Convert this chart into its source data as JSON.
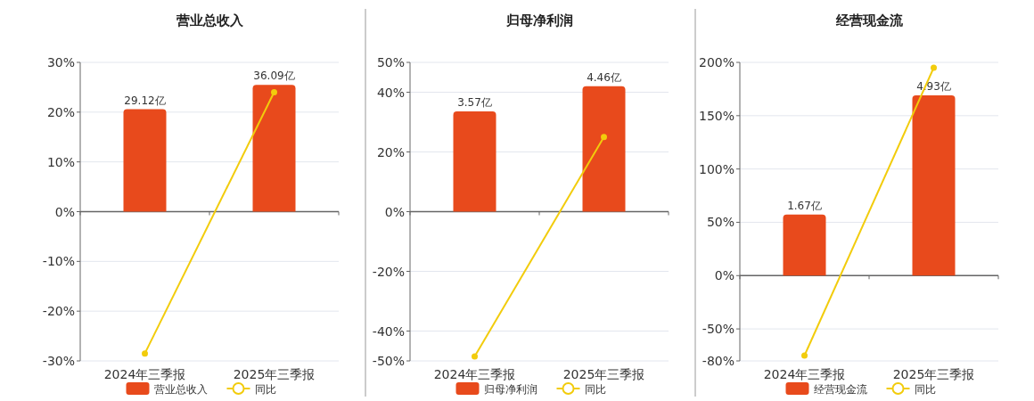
{
  "chart_data": [
    {
      "type": "bar",
      "title": "营业总收入",
      "categories": [
        "2024年三季报",
        "2025年三季报"
      ],
      "series": [
        {
          "name": "营业总收入",
          "color": "#e84a1c",
          "values": [
            29.12,
            36.09
          ],
          "axis": "y2",
          "value_labels": [
            "29.12亿",
            "36.09亿"
          ]
        },
        {
          "name": "同比",
          "type": "line",
          "color": "#f2cc0c",
          "values": [
            -28.5,
            24
          ],
          "marker": "circle"
        }
      ],
      "ylim": [
        -30,
        30
      ],
      "yticks": [
        {
          "value": -30,
          "label": "-30%"
        },
        {
          "value": -20,
          "label": "-20%"
        },
        {
          "value": -10,
          "label": "-10%"
        },
        {
          "value": 0,
          "label": "0%"
        },
        {
          "value": 10,
          "label": "10%"
        },
        {
          "value": 20,
          "label": "20%"
        },
        {
          "value": 30,
          "label": "30%"
        }
      ],
      "y2lim": [
        -42.46,
        42.46
      ],
      "grid": "y",
      "legend": "bottom",
      "tick_labels": "x"
    },
    {
      "type": "bar",
      "title": "归母净利润",
      "categories": [
        "2024年三季报",
        "2025年三季报"
      ],
      "series": [
        {
          "name": "归母净利润",
          "color": "#e84a1c",
          "values": [
            3.57,
            4.46
          ],
          "axis": "y2",
          "value_labels": [
            "3.57亿",
            "4.46亿"
          ]
        },
        {
          "name": "同比",
          "type": "line",
          "color": "#f2cc0c",
          "values": [
            -48.5,
            25
          ],
          "marker": "circle"
        }
      ],
      "ylim": [
        -50,
        50
      ],
      "yticks": [
        {
          "value": -50,
          "label": "-50%"
        },
        {
          "value": -40,
          "label": "-40%"
        },
        {
          "value": -20,
          "label": "-20%"
        },
        {
          "value": 0,
          "label": "0%"
        },
        {
          "value": 20,
          "label": "20%"
        },
        {
          "value": 40,
          "label": "40%"
        },
        {
          "value": 50,
          "label": "50%"
        }
      ],
      "y2lim": [
        -5.31,
        5.31
      ],
      "grid": "y",
      "legend": "bottom",
      "tick_labels": "x"
    },
    {
      "type": "bar",
      "title": "经营现金流",
      "categories": [
        "2024年三季报",
        "2025年三季报"
      ],
      "series": [
        {
          "name": "经营现金流",
          "color": "#e84a1c",
          "values": [
            1.67,
            4.93
          ],
          "axis": "y2",
          "value_labels": [
            "1.67亿",
            "4.93亿"
          ]
        },
        {
          "name": "同比",
          "type": "line",
          "color": "#f2cc0c",
          "values": [
            -75,
            195
          ],
          "marker": "circle"
        }
      ],
      "ylim": [
        -80,
        200
      ],
      "yticks": [
        {
          "value": -80,
          "label": "-80%"
        },
        {
          "value": -50,
          "label": "-50%"
        },
        {
          "value": 0,
          "label": "0%"
        },
        {
          "value": 50,
          "label": "50%"
        },
        {
          "value": 100,
          "label": "100%"
        },
        {
          "value": 150,
          "label": "150%"
        },
        {
          "value": 200,
          "label": "200%"
        }
      ],
      "y2lim": [
        -2.334,
        5.834
      ],
      "grid": "y",
      "legend": "bottom",
      "tick_labels": "x"
    }
  ]
}
